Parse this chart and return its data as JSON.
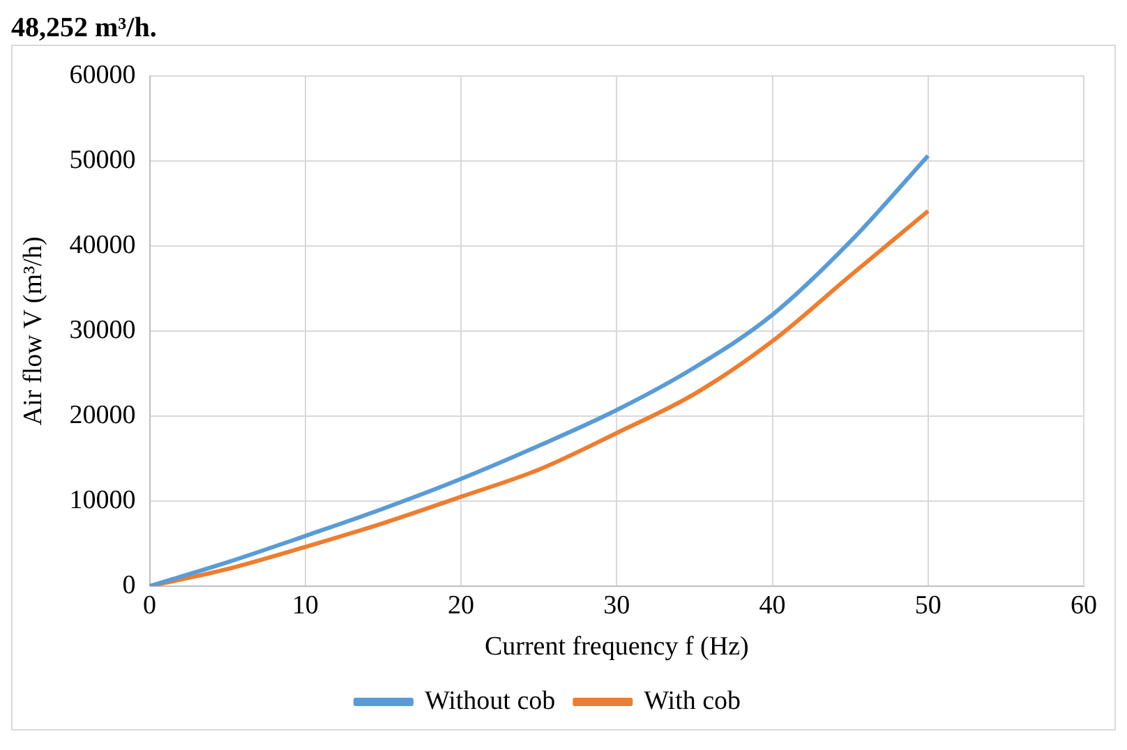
{
  "chart_data": {
    "type": "line",
    "annotations": [
      "48,252 m³/h."
    ],
    "xlabel": "Current frequency f (Hz)",
    "ylabel": "Air flow V (m³/h)",
    "x": [
      0,
      5,
      10,
      15,
      20,
      25,
      30,
      35,
      40,
      45,
      50
    ],
    "series": [
      {
        "name": "Without cob",
        "color": "#5b9bd5",
        "values": [
          0,
          2800,
          5900,
          9100,
          12600,
          16500,
          20700,
          25700,
          31900,
          40500,
          50600
        ]
      },
      {
        "name": "With cob",
        "color": "#ed7d31",
        "values": [
          0,
          2000,
          4600,
          7400,
          10500,
          13700,
          18000,
          22600,
          28800,
          36500,
          44100
        ]
      }
    ],
    "xlim": [
      0,
      60
    ],
    "xticks": [
      0,
      10,
      20,
      30,
      40,
      50,
      60
    ],
    "ylim": [
      0,
      60000
    ],
    "yticks": [
      0,
      10000,
      20000,
      30000,
      40000,
      50000,
      60000
    ],
    "grid": true,
    "legend": "bottom",
    "marker": "none",
    "line_style": "solid"
  }
}
